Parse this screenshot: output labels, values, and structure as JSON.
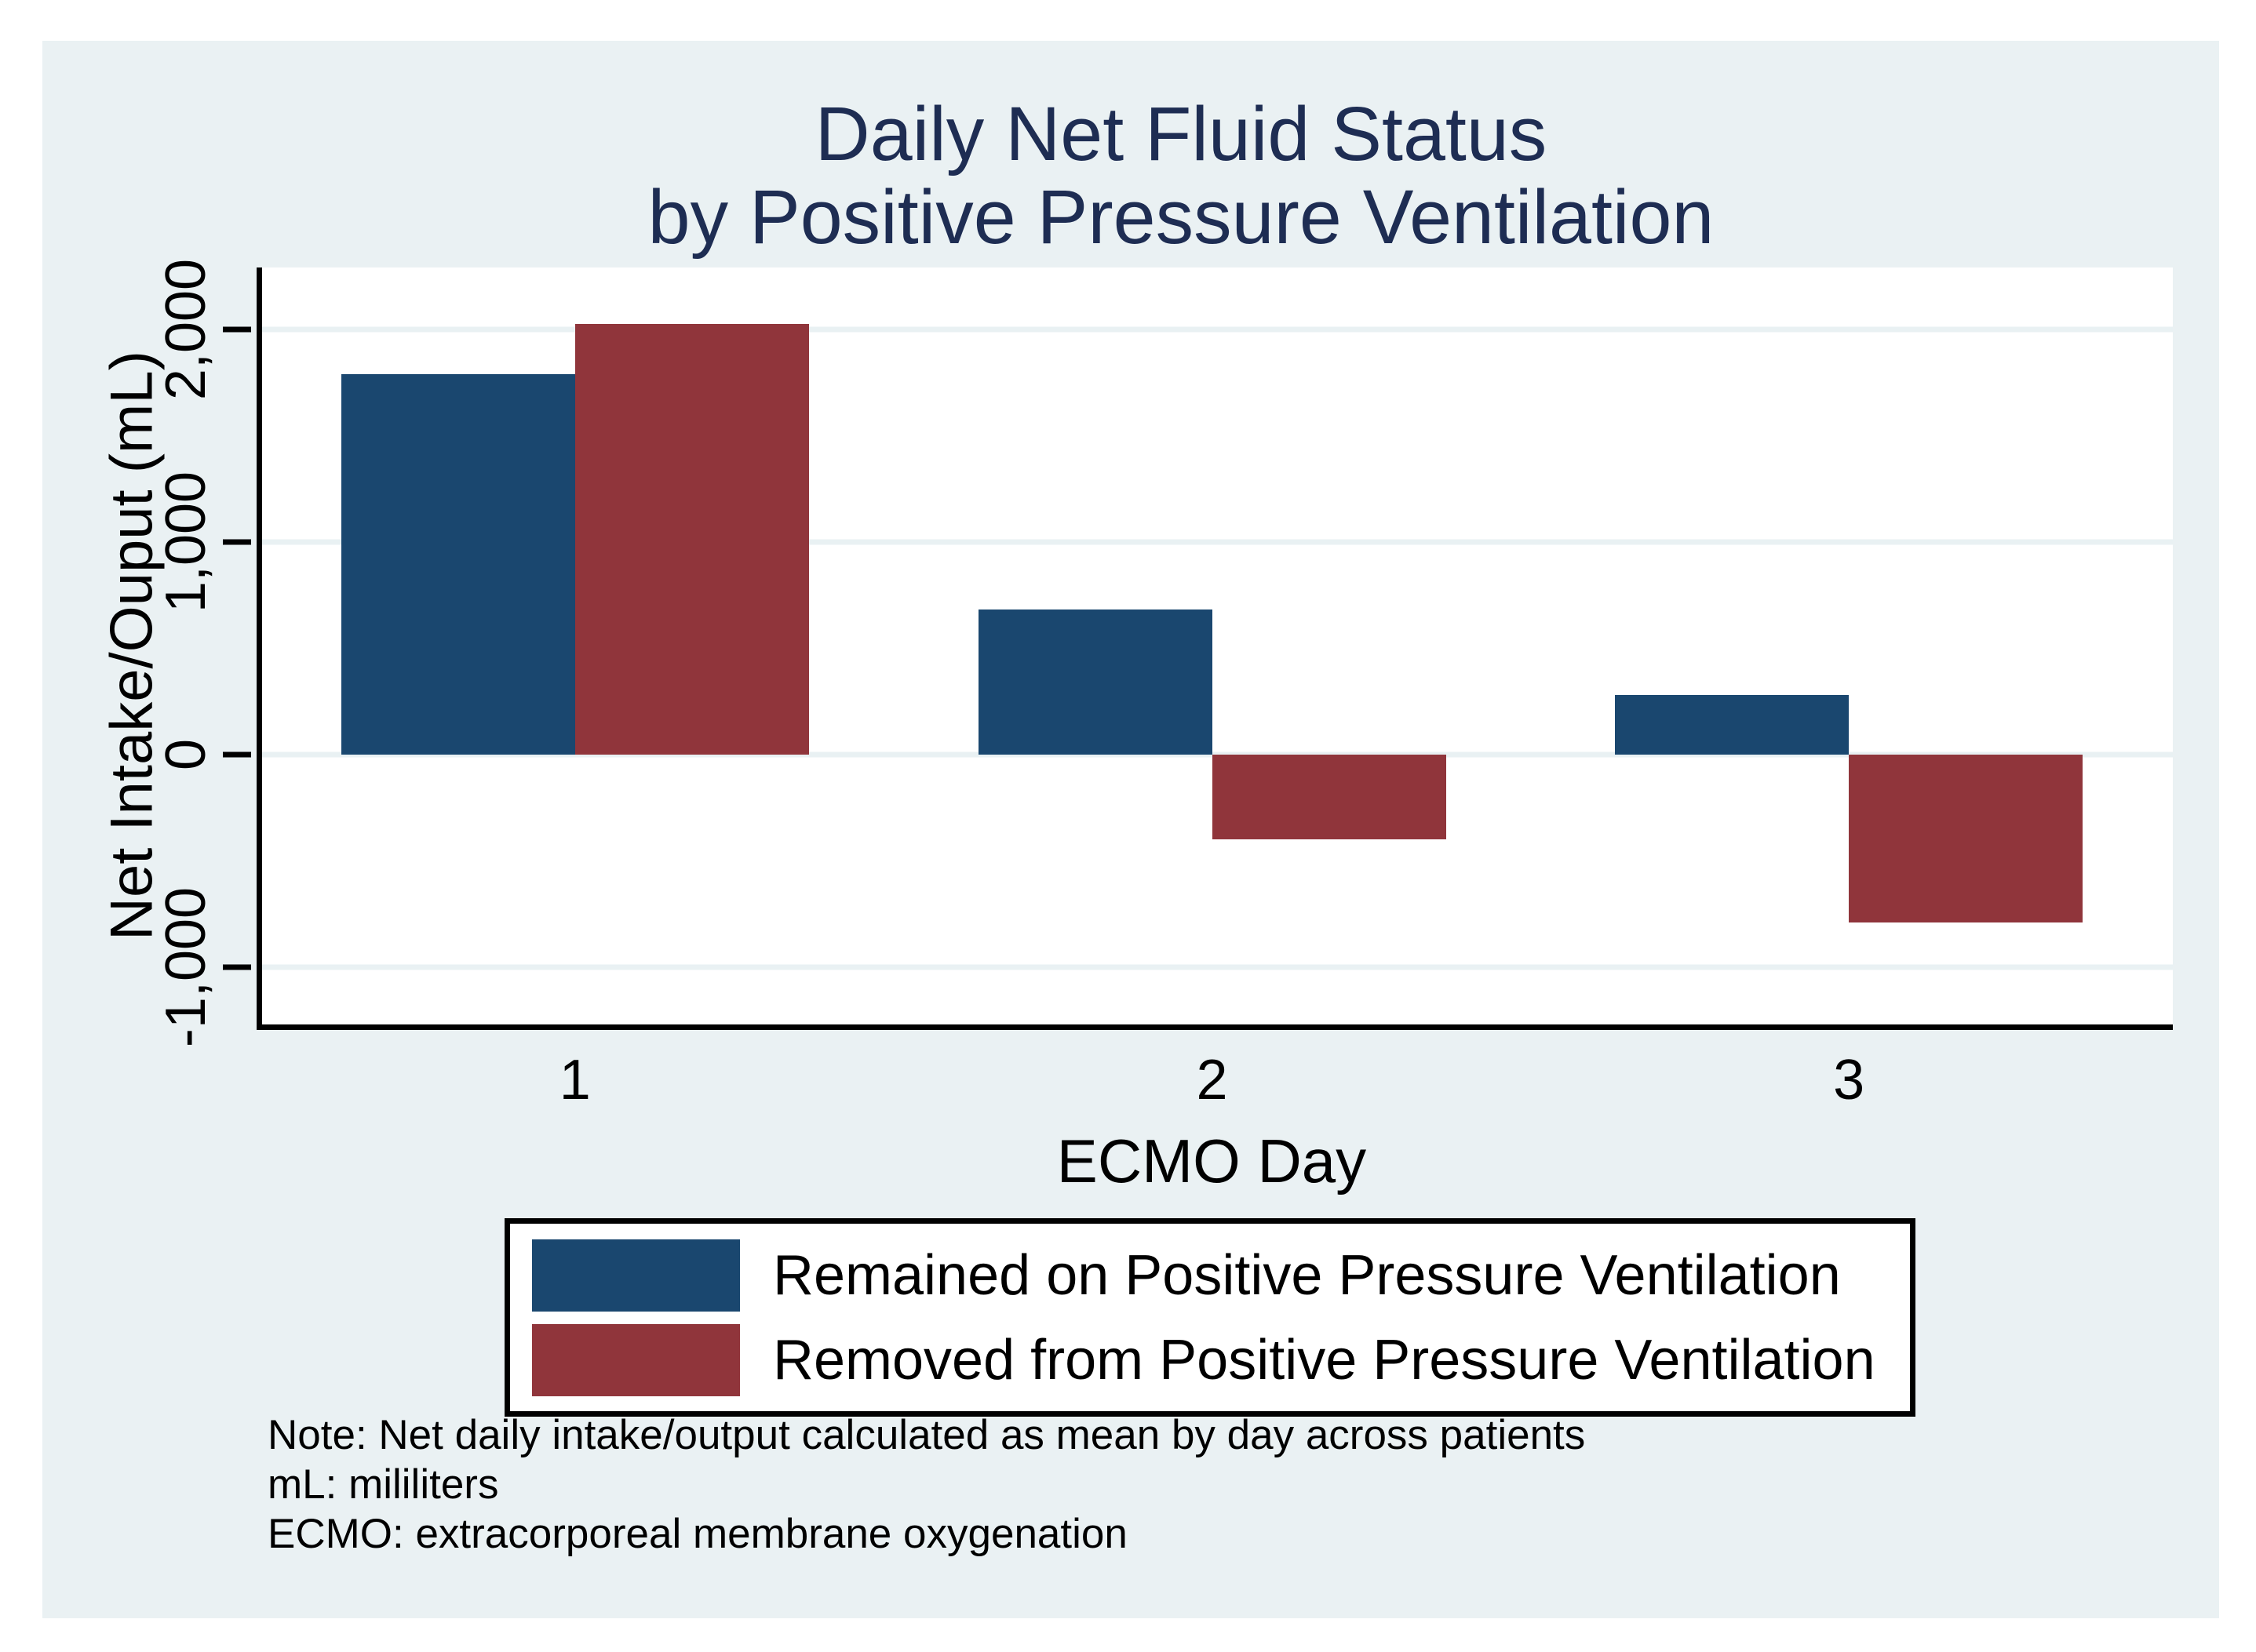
{
  "figure": {
    "title_line1": "Daily Net Fluid Status",
    "title_line2": "by Positive Pressure Ventilation",
    "colors": {
      "title": "#1e2d53",
      "panel_background": "#eaf1f3",
      "plot_background": "#ffffff",
      "gridline": "#e9f1f3",
      "axis": "#000000",
      "series_blue": "#1a476f",
      "series_maroon": "#90353b"
    }
  },
  "chart_data": {
    "type": "bar",
    "title": "Daily Net Fluid Status by Positive Pressure Ventilation",
    "categories": [
      "1",
      "2",
      "3"
    ],
    "series": [
      {
        "name": "Remained on Positive Pressure Ventilation",
        "color": "#1a476f",
        "values": [
          1790,
          680,
          280
        ]
      },
      {
        "name": "Removed from Positive Pressure Ventilation",
        "color": "#90353b",
        "values": [
          2025,
          -400,
          -790
        ]
      }
    ],
    "xlabel": "ECMO Day",
    "ylabel": "Net Intake/Ouput (mL)",
    "ylim": [
      -1270,
      2290
    ],
    "yticks": [
      {
        "value": 2000,
        "label": "2,000"
      },
      {
        "value": 1000,
        "label": "1,000"
      },
      {
        "value": 0,
        "label": "0"
      },
      {
        "value": -1000,
        "label": "-1,000"
      }
    ],
    "grid": true,
    "legend_position": "bottom"
  },
  "notes": {
    "line1": "Note: Net daily intake/output calculated as mean by day across patients",
    "line2": "mL: mililiters",
    "line3": "ECMO: extracorporeal membrane oxygenation"
  }
}
